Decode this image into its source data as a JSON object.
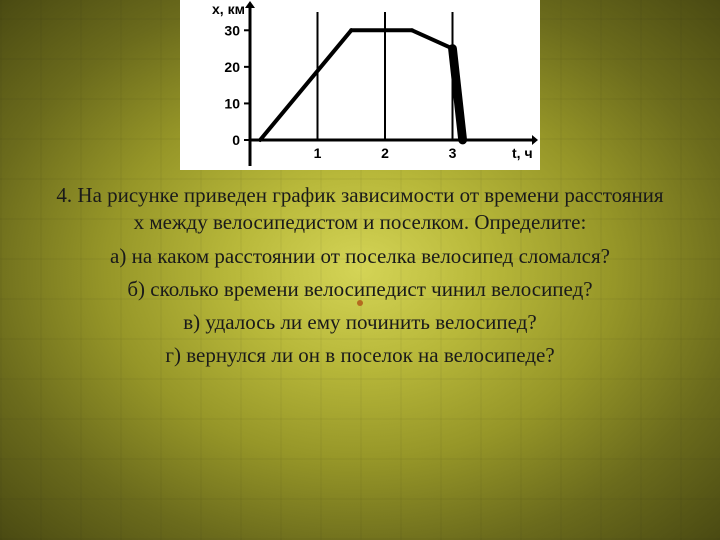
{
  "chart": {
    "type": "line",
    "background_color": "#ffffff",
    "line_color": "#000000",
    "line_width": 4,
    "axis_color": "#000000",
    "axis_width": 3,
    "tick_color": "#000000",
    "grid_vertical_x": [
      1,
      2,
      3
    ],
    "x_axis_label": "t, ч",
    "y_axis_label": "x, км",
    "xlim": [
      0,
      4
    ],
    "ylim": [
      0,
      35
    ],
    "xticks": [
      0,
      1,
      2,
      3
    ],
    "yticks": [
      0,
      10,
      20,
      30
    ],
    "ytick_labels": [
      "0",
      "10",
      "20",
      "30"
    ],
    "xtick_labels": [
      "",
      "1",
      "2",
      "3"
    ],
    "points": [
      {
        "t": 0.15,
        "x": 0
      },
      {
        "t": 1.5,
        "x": 30
      },
      {
        "t": 2.4,
        "x": 30
      },
      {
        "t": 3.0,
        "x": 25
      },
      {
        "t": 3.15,
        "x": 0
      }
    ],
    "label_fontsize": 14,
    "segment_thick_index": 3
  },
  "text": {
    "intro": "4. На рисунке приведен график зависимости от времени расстояния х между велосипедистом и поселком. Определите:",
    "qa": "а) на каком расстоянии от поселка велосипед сломался?",
    "qb": "б) сколько времени велосипедист чинил велосипед?",
    "qc": "в) удалось ли ему починить велосипед?",
    "qd": "г) вернулся ли он в поселок на велосипеде?"
  },
  "colors": {
    "text_color": "#1a1a1a",
    "accent_dot": "#b46a1f"
  }
}
